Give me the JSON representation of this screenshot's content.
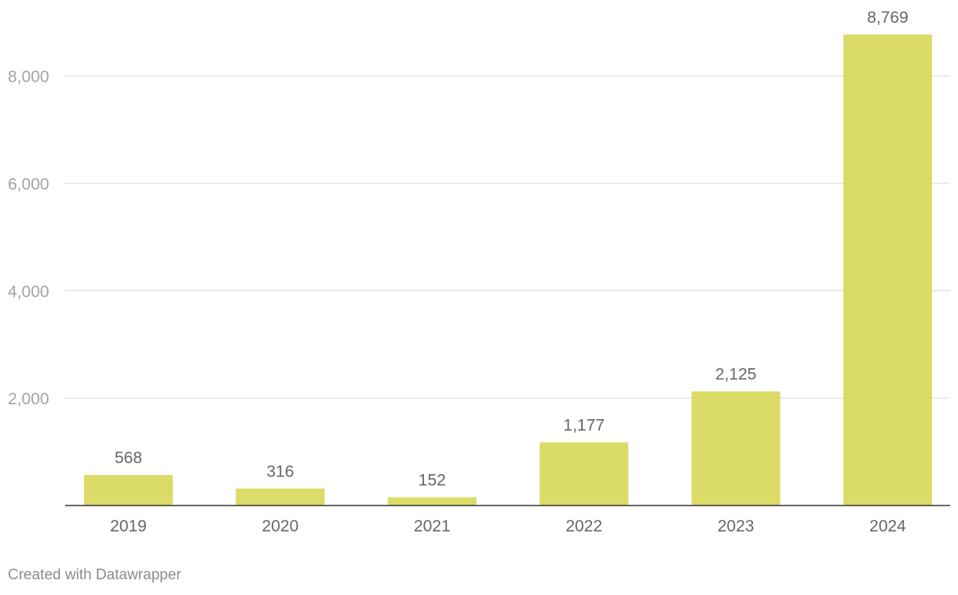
{
  "chart_data": {
    "type": "bar",
    "categories": [
      "2019",
      "2020",
      "2021",
      "2022",
      "2023",
      "2024"
    ],
    "values": [
      568,
      316,
      152,
      1177,
      2125,
      8769
    ],
    "value_labels": [
      "568",
      "316",
      "152",
      "1,177",
      "2,125",
      "8,769"
    ],
    "y_ticks": [
      2000,
      4000,
      6000,
      8000
    ],
    "y_tick_labels": [
      "2,000",
      "4,000",
      "6,000",
      "8,000"
    ],
    "ylim": [
      0,
      8769
    ],
    "grid": true,
    "bar_color": "#dbdb68",
    "title": "",
    "xlabel": "",
    "ylabel": ""
  },
  "footer": {
    "credit": "Created with Datawrapper"
  }
}
